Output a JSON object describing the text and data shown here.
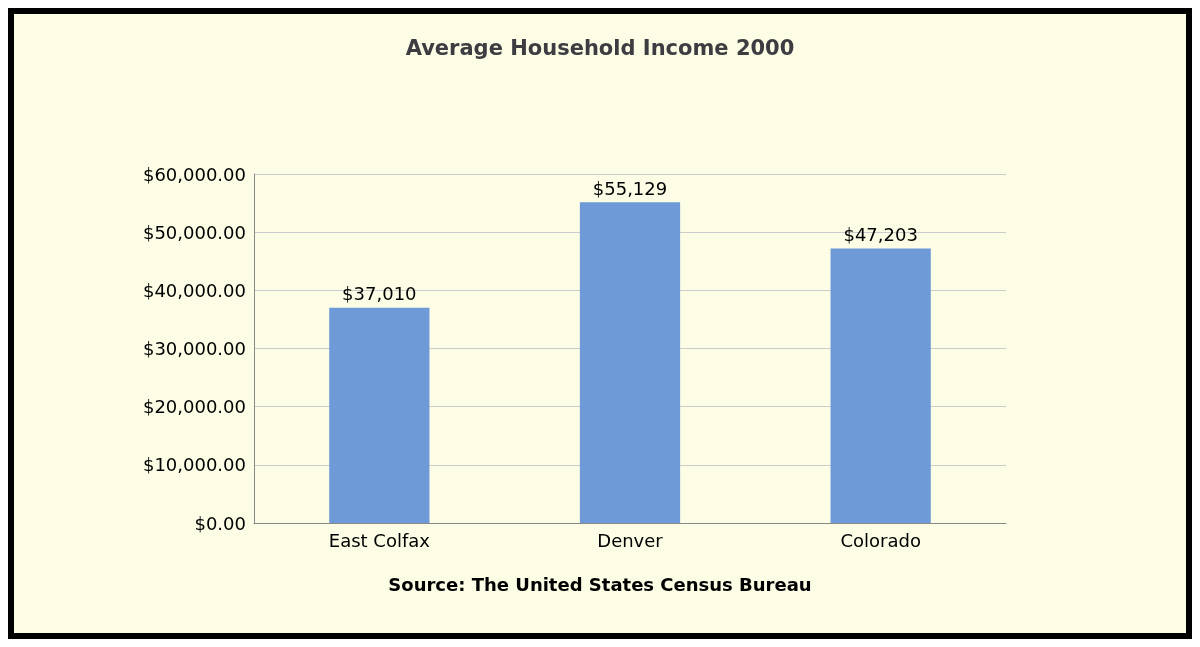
{
  "chart_data": {
    "type": "bar",
    "title": "Average Household Income 2000",
    "categories": [
      "East Colfax",
      "Denver",
      "Colorado"
    ],
    "values": [
      37010,
      55129,
      47203
    ],
    "value_labels": [
      "$37,010",
      "$55,129",
      "$47,203"
    ],
    "color": "#6f9ad8",
    "ylim": [
      0,
      60000
    ],
    "yticks": [
      {
        "value": 0,
        "label": "$0.00"
      },
      {
        "value": 10000,
        "label": "$10,000.00"
      },
      {
        "value": 20000,
        "label": "$20,000.00"
      },
      {
        "value": 30000,
        "label": "$30,000.00"
      },
      {
        "value": 40000,
        "label": "$40,000.00"
      },
      {
        "value": 50000,
        "label": "$50,000.00"
      },
      {
        "value": 60000,
        "label": "$60,000.00"
      }
    ],
    "grid": "y",
    "annotations": [
      "Source: The United States Census Bureau"
    ]
  }
}
